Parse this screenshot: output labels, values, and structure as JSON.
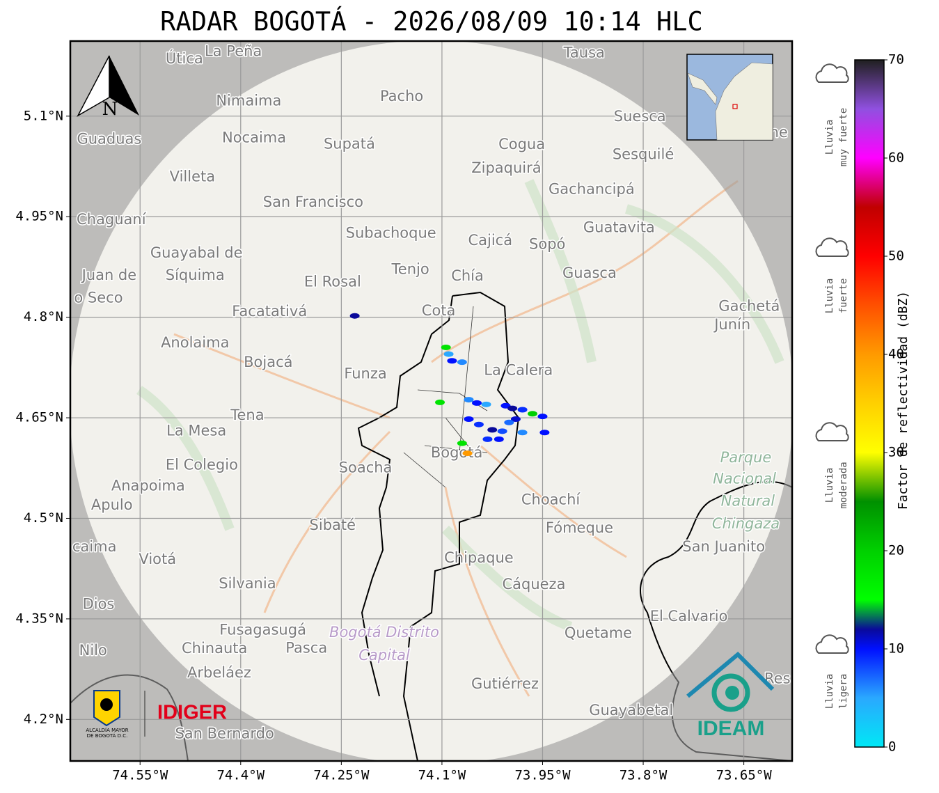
{
  "map": {
    "title": "RADAR BOGOTÁ - 2026/08/09 10:14 HLC",
    "north": "N",
    "xlim": [
      -74.654,
      -73.578
    ],
    "ylim": [
      4.138,
      5.212
    ],
    "xticks": [
      {
        "value": -74.55,
        "label": "74.55°W"
      },
      {
        "value": -74.4,
        "label": "74.4°W"
      },
      {
        "value": -74.25,
        "label": "74.25°W"
      },
      {
        "value": -74.1,
        "label": "74.1°W"
      },
      {
        "value": -73.95,
        "label": "73.95°W"
      },
      {
        "value": -73.8,
        "label": "73.8°W"
      },
      {
        "value": -73.65,
        "label": "73.65°W"
      }
    ],
    "yticks": [
      {
        "value": 4.2,
        "label": "4.2°N"
      },
      {
        "value": 4.35,
        "label": "4.35°N"
      },
      {
        "value": 4.5,
        "label": "4.5°N"
      },
      {
        "value": 4.65,
        "label": "4.65°N"
      },
      {
        "value": 4.8,
        "label": "4.8°N"
      },
      {
        "value": 4.95,
        "label": "4.95°N"
      },
      {
        "value": 5.1,
        "label": "5.1°N"
      }
    ],
    "grid": true,
    "places": [
      {
        "name": "Útica",
        "lon": -74.484,
        "lat": 5.185
      },
      {
        "name": "La Peña",
        "lon": -74.411,
        "lat": 5.196
      },
      {
        "name": "Tausa",
        "lon": -73.888,
        "lat": 5.194
      },
      {
        "name": "Pacho",
        "lon": -74.16,
        "lat": 5.129
      },
      {
        "name": "Nimaima",
        "lon": -74.388,
        "lat": 5.122
      },
      {
        "name": "Guaduas",
        "lon": -74.596,
        "lat": 5.065
      },
      {
        "name": "Nocaima",
        "lon": -74.38,
        "lat": 5.067
      },
      {
        "name": "Supatá",
        "lon": -74.238,
        "lat": 5.058
      },
      {
        "name": "Cogua",
        "lon": -73.981,
        "lat": 5.057
      },
      {
        "name": "Suesca",
        "lon": -73.805,
        "lat": 5.099
      },
      {
        "name": "ne",
        "lon": -73.598,
        "lat": 5.075
      },
      {
        "name": "Sesquilé",
        "lon": -73.8,
        "lat": 5.042
      },
      {
        "name": "Zipaquirá",
        "lon": -74.004,
        "lat": 5.022
      },
      {
        "name": "Villeta",
        "lon": -74.472,
        "lat": 5.009
      },
      {
        "name": "Gachancipá",
        "lon": -73.877,
        "lat": 4.99
      },
      {
        "name": "San Francisco",
        "lon": -74.292,
        "lat": 4.971
      },
      {
        "name": "Chaguaní",
        "lon": -74.593,
        "lat": 4.945
      },
      {
        "name": "Guatavita",
        "lon": -73.836,
        "lat": 4.933
      },
      {
        "name": "Subachoque",
        "lon": -74.176,
        "lat": 4.925
      },
      {
        "name": "Cajicá",
        "lon": -74.028,
        "lat": 4.914
      },
      {
        "name": "Sopó",
        "lon": -73.943,
        "lat": 4.908
      },
      {
        "name": "Guayabal de",
        "lon": -74.466,
        "lat": 4.895
      },
      {
        "name": "Síquima",
        "lon": -74.468,
        "lat": 4.862
      },
      {
        "name": "Juan de",
        "lon": -74.596,
        "lat": 4.862
      },
      {
        "name": "o Seco",
        "lon": -74.612,
        "lat": 4.828
      },
      {
        "name": "Tenjo",
        "lon": -74.147,
        "lat": 4.871
      },
      {
        "name": "Chía",
        "lon": -74.062,
        "lat": 4.861
      },
      {
        "name": "Guasca",
        "lon": -73.88,
        "lat": 4.865
      },
      {
        "name": "El Rosal",
        "lon": -74.263,
        "lat": 4.852
      },
      {
        "name": "Facatativá",
        "lon": -74.357,
        "lat": 4.808
      },
      {
        "name": "Cota",
        "lon": -74.105,
        "lat": 4.809
      },
      {
        "name": "Gachetá",
        "lon": -73.642,
        "lat": 4.816
      },
      {
        "name": "Junín",
        "lon": -73.667,
        "lat": 4.788
      },
      {
        "name": "Anolaima",
        "lon": -74.468,
        "lat": 4.761
      },
      {
        "name": "Bojacá",
        "lon": -74.359,
        "lat": 4.732
      },
      {
        "name": "Funza",
        "lon": -74.214,
        "lat": 4.715
      },
      {
        "name": "La Calera",
        "lon": -73.986,
        "lat": 4.72
      },
      {
        "name": "Tena",
        "lon": -74.39,
        "lat": 4.653
      },
      {
        "name": "La Mesa",
        "lon": -74.466,
        "lat": 4.63
      },
      {
        "name": "Bogotá",
        "lon": -74.078,
        "lat": 4.597
      },
      {
        "name": "Soacha",
        "lon": -74.214,
        "lat": 4.575
      },
      {
        "name": "El Colegio",
        "lon": -74.458,
        "lat": 4.579
      },
      {
        "name": "Parque",
        "lon": -73.647,
        "lat": 4.59,
        "kind": "park"
      },
      {
        "name": "Nacional",
        "lon": -73.649,
        "lat": 4.558,
        "kind": "park"
      },
      {
        "name": "Natural",
        "lon": -73.644,
        "lat": 4.525,
        "kind": "park"
      },
      {
        "name": "Chingaza",
        "lon": -73.647,
        "lat": 4.491,
        "kind": "park"
      },
      {
        "name": "Anapoima",
        "lon": -74.538,
        "lat": 4.548
      },
      {
        "name": "Apulo",
        "lon": -74.592,
        "lat": 4.519
      },
      {
        "name": "Choachí",
        "lon": -73.938,
        "lat": 4.527
      },
      {
        "name": "Sibaté",
        "lon": -74.263,
        "lat": 4.489
      },
      {
        "name": "Fómeque",
        "lon": -73.895,
        "lat": 4.485
      },
      {
        "name": "San Juanito",
        "lon": -73.68,
        "lat": 4.457
      },
      {
        "name": "caima",
        "lon": -74.618,
        "lat": 4.457
      },
      {
        "name": "Viotá",
        "lon": -74.524,
        "lat": 4.438
      },
      {
        "name": "Chipaque",
        "lon": -74.045,
        "lat": 4.44
      },
      {
        "name": "Silvania",
        "lon": -74.39,
        "lat": 4.402
      },
      {
        "name": "Cáqueza",
        "lon": -73.963,
        "lat": 4.401
      },
      {
        "name": "Dios",
        "lon": -74.612,
        "lat": 4.371
      },
      {
        "name": "El Calvario",
        "lon": -73.732,
        "lat": 4.353
      },
      {
        "name": "Fusagasugá",
        "lon": -74.367,
        "lat": 4.333
      },
      {
        "name": "Bogotá Distrito",
        "lon": -74.186,
        "lat": 4.329,
        "kind": "district"
      },
      {
        "name": "Capital",
        "lon": -74.186,
        "lat": 4.295,
        "kind": "district"
      },
      {
        "name": "Quetame",
        "lon": -73.867,
        "lat": 4.328
      },
      {
        "name": "Nilo",
        "lon": -74.62,
        "lat": 4.302
      },
      {
        "name": "Chinauta",
        "lon": -74.439,
        "lat": 4.305
      },
      {
        "name": "Pasca",
        "lon": -74.302,
        "lat": 4.306
      },
      {
        "name": "Arbeláez",
        "lon": -74.432,
        "lat": 4.269
      },
      {
        "name": "Gutiérrez",
        "lon": -74.006,
        "lat": 4.252
      },
      {
        "name": "Res",
        "lon": -73.6,
        "lat": 4.26
      },
      {
        "name": "Guayabetal",
        "lon": -73.818,
        "lat": 4.213
      },
      {
        "name": "San Bernardo",
        "lon": -74.424,
        "lat": 4.178
      }
    ],
    "echoes": [
      {
        "lon": -74.23,
        "lat": 4.802,
        "dbz": 12
      },
      {
        "lon": -74.094,
        "lat": 4.755,
        "dbz": 18
      },
      {
        "lon": -74.09,
        "lat": 4.745,
        "dbz": 5
      },
      {
        "lon": -74.085,
        "lat": 4.735,
        "dbz": 10
      },
      {
        "lon": -74.07,
        "lat": 4.733,
        "dbz": 6
      },
      {
        "lon": -74.103,
        "lat": 4.673,
        "dbz": 18
      },
      {
        "lon": -74.06,
        "lat": 4.677,
        "dbz": 6
      },
      {
        "lon": -74.048,
        "lat": 4.672,
        "dbz": 10
      },
      {
        "lon": -74.034,
        "lat": 4.67,
        "dbz": 5
      },
      {
        "lon": -74.005,
        "lat": 4.668,
        "dbz": 10
      },
      {
        "lon": -73.995,
        "lat": 4.664,
        "dbz": 12
      },
      {
        "lon": -73.98,
        "lat": 4.662,
        "dbz": 9
      },
      {
        "lon": -73.965,
        "lat": 4.656,
        "dbz": 20
      },
      {
        "lon": -73.95,
        "lat": 4.652,
        "dbz": 10
      },
      {
        "lon": -73.99,
        "lat": 4.648,
        "dbz": 11
      },
      {
        "lon": -74.0,
        "lat": 4.643,
        "dbz": 7
      },
      {
        "lon": -74.06,
        "lat": 4.648,
        "dbz": 10
      },
      {
        "lon": -74.045,
        "lat": 4.64,
        "dbz": 9
      },
      {
        "lon": -74.025,
        "lat": 4.632,
        "dbz": 12
      },
      {
        "lon": -74.01,
        "lat": 4.63,
        "dbz": 8
      },
      {
        "lon": -73.98,
        "lat": 4.628,
        "dbz": 6
      },
      {
        "lon": -73.947,
        "lat": 4.628,
        "dbz": 10
      },
      {
        "lon": -74.032,
        "lat": 4.618,
        "dbz": 9
      },
      {
        "lon": -74.015,
        "lat": 4.618,
        "dbz": 10
      },
      {
        "lon": -74.07,
        "lat": 4.612,
        "dbz": 18
      },
      {
        "lon": -74.062,
        "lat": 4.597,
        "dbz": 40
      }
    ],
    "colorbar": {
      "label": "Factor de reflectividad (dBZ)",
      "lim": [
        0,
        70
      ],
      "ticks": [
        0,
        10,
        20,
        30,
        40,
        50,
        60,
        70
      ],
      "colormap": [
        [
          0,
          "#00e8f5"
        ],
        [
          5,
          "#2aa8ff"
        ],
        [
          10,
          "#0010ff"
        ],
        [
          12,
          "#0a0a9a"
        ],
        [
          15,
          "#00ff00"
        ],
        [
          20,
          "#00d000"
        ],
        [
          25,
          "#009000"
        ],
        [
          28,
          "#9ad000"
        ],
        [
          30,
          "#ffff00"
        ],
        [
          35,
          "#ffd000"
        ],
        [
          40,
          "#ff9a00"
        ],
        [
          45,
          "#ff5000"
        ],
        [
          50,
          "#ff0000"
        ],
        [
          55,
          "#c00000"
        ],
        [
          60,
          "#ff00ff"
        ],
        [
          65,
          "#9050e0"
        ],
        [
          70,
          "#202020"
        ]
      ]
    },
    "legend": [
      {
        "lines": [
          "Lluvia",
          "muy fuerte"
        ]
      },
      {
        "lines": [
          "Lluvia",
          "fuerte"
        ]
      },
      {
        "lines": [
          "Lluvia",
          "moderada"
        ]
      },
      {
        "lines": [
          "Lluvia",
          "ligera"
        ]
      }
    ],
    "logos": {
      "idiger": "IDIGER",
      "ideam": "IDEAM",
      "alcaldia": [
        "ALCALDÍA MAYOR",
        "DE BOGOTÁ D.C."
      ]
    }
  }
}
